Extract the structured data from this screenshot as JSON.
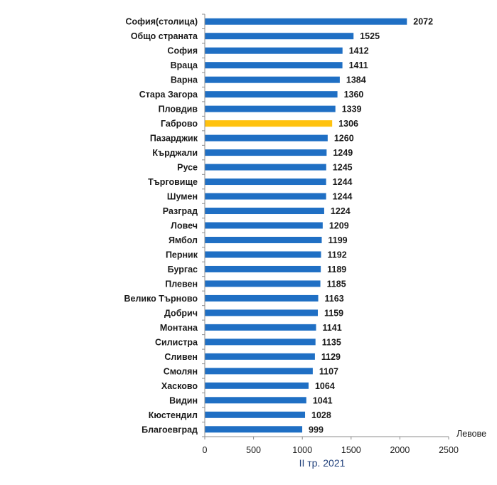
{
  "chart_data": {
    "type": "bar",
    "orientation": "horizontal",
    "categories": [
      "София(столица)",
      "Общо страната",
      "София",
      "Враца",
      "Варна",
      "Стара Загора",
      "Пловдив",
      "Габрово",
      "Пазарджик",
      "Кърджали",
      "Русе",
      "Търговище",
      "Шумен",
      "Разград",
      "Ловеч",
      "Ямбол",
      "Перник",
      "Бургас",
      "Плевен",
      "Велико Търново",
      "Добрич",
      "Монтана",
      "Силистра",
      "Сливен",
      "Смолян",
      "Хасково",
      "Видин",
      "Кюстендил",
      "Благоевград"
    ],
    "values": [
      2072,
      1525,
      1412,
      1411,
      1384,
      1360,
      1339,
      1306,
      1260,
      1249,
      1245,
      1244,
      1244,
      1224,
      1209,
      1199,
      1192,
      1189,
      1185,
      1163,
      1159,
      1141,
      1135,
      1129,
      1107,
      1064,
      1041,
      1028,
      999
    ],
    "highlight_category": "Габрово",
    "bar_color": "#1f6fc4",
    "highlight_color": "#ffc20e",
    "xlim": [
      0,
      2500
    ],
    "xticks": [
      0,
      500,
      1000,
      1500,
      2000,
      2500
    ],
    "xlabel": "Левове",
    "subtitle": "II тр. 2021",
    "grid": false
  }
}
